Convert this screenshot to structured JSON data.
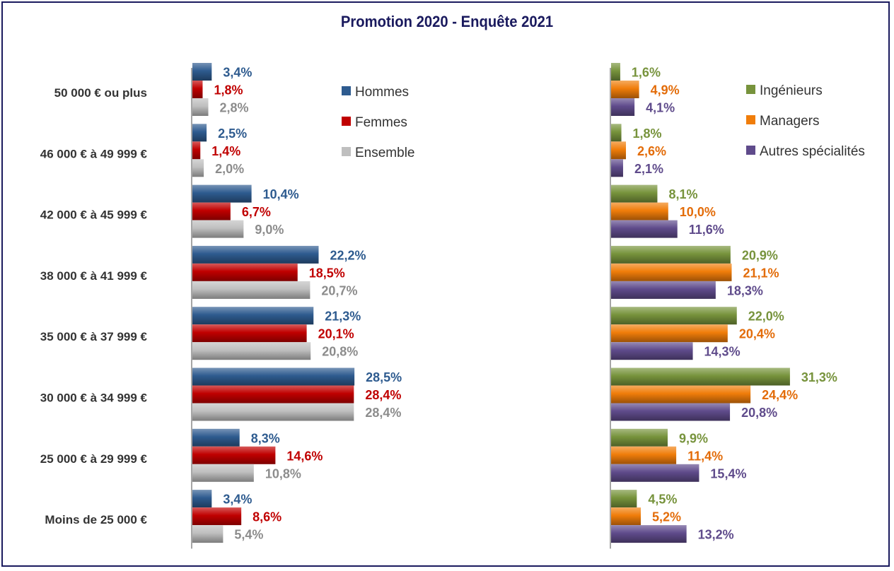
{
  "chart_data": {
    "type": "bar",
    "orientation": "horizontal",
    "title": "Promotion 2020 - Enquête 2021",
    "categories": [
      "50 000 € ou plus",
      "46 000 € à 49 999 €",
      "42 000 € à 45 999 €",
      "38 000 € à 41 999 €",
      "35 000 € à 37 999 €",
      "30 000 € à 34 999 €",
      "25 000 € à 29 999 €",
      "Moins de 25 000 €"
    ],
    "panels": [
      {
        "series": [
          {
            "name": "Hommes",
            "color": "#2e5b8f",
            "values": [
              3.4,
              2.5,
              10.4,
              22.2,
              21.3,
              28.5,
              8.3,
              3.4
            ],
            "labels": [
              "3,4%",
              "2,5%",
              "10,4%",
              "22,2%",
              "21,3%",
              "28,5%",
              "8,3%",
              "3,4%"
            ]
          },
          {
            "name": "Femmes",
            "color": "#c00000",
            "values": [
              1.8,
              1.4,
              6.7,
              18.5,
              20.1,
              28.4,
              14.6,
              8.6
            ],
            "labels": [
              "1,8%",
              "1,4%",
              "6,7%",
              "18,5%",
              "20,1%",
              "28,4%",
              "14,6%",
              "8,6%"
            ]
          },
          {
            "name": "Ensemble",
            "color": "#bfbfbf",
            "label_color": "#8c8c8c",
            "values": [
              2.8,
              2.0,
              9.0,
              20.7,
              20.8,
              28.4,
              10.8,
              5.4
            ],
            "labels": [
              "2,8%",
              "2,0%",
              "9,0%",
              "20,7%",
              "20,8%",
              "28,4%",
              "10,8%",
              "5,4%"
            ]
          }
        ]
      },
      {
        "series": [
          {
            "name": "Ingénieurs",
            "color": "#77933c",
            "values": [
              1.6,
              1.8,
              8.1,
              20.9,
              22.0,
              31.3,
              9.9,
              4.5
            ],
            "labels": [
              "1,6%",
              "1,8%",
              "8,1%",
              "20,9%",
              "22,0%",
              "31,3%",
              "9,9%",
              "4,5%"
            ]
          },
          {
            "name": "Managers",
            "color": "#f07d0a",
            "label_color": "#e36c09",
            "values": [
              4.9,
              2.6,
              10.0,
              21.1,
              20.4,
              24.4,
              11.4,
              5.2
            ],
            "labels": [
              "4,9%",
              "2,6%",
              "10,0%",
              "21,1%",
              "20,4%",
              "24,4%",
              "11,4%",
              "5,2%"
            ]
          },
          {
            "name": "Autres spécialités",
            "color": "#5f4b8b",
            "values": [
              4.1,
              2.1,
              11.6,
              18.3,
              14.3,
              20.8,
              15.4,
              13.2
            ],
            "labels": [
              "4,1%",
              "2,1%",
              "11,6%",
              "18,3%",
              "14,3%",
              "20,8%",
              "15,4%",
              "13,2%"
            ]
          }
        ]
      }
    ],
    "legend": "top-right of each panel",
    "grid": false
  }
}
